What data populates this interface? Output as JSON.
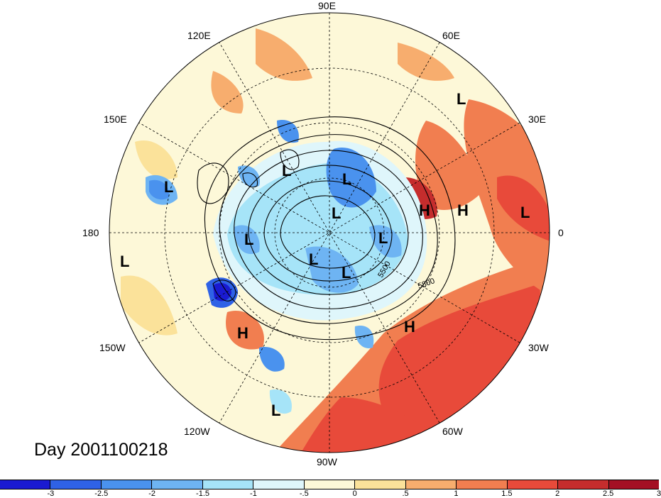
{
  "title": "Day 2001100218",
  "longitude_labels": {
    "lon_90e": "90E",
    "lon_60e": "60E",
    "lon_30e": "30E",
    "lon_0": "0",
    "lon_30w": "30W",
    "lon_60w": "60W",
    "lon_90w": "90W",
    "lon_120w": "120W",
    "lon_150w": "150W",
    "lon_180": "180",
    "lon_150e": "150E",
    "lon_120e": "120E"
  },
  "pressure_centers": {
    "low": "L",
    "high": "H"
  },
  "contour_labels": [
    "5500",
    "5800"
  ],
  "colorbar": {
    "colors": [
      "#1a1ad1",
      "#2f62e6",
      "#4a92ee",
      "#6eb4f3",
      "#a6e4f8",
      "#dff6fb",
      "#fdf8d8",
      "#fbe29a",
      "#f7ad6e",
      "#f17e50",
      "#e84a3a",
      "#c52d2d",
      "#a41024"
    ],
    "ticks": [
      "-3",
      "-2.5",
      "-2",
      "-1.5",
      "-1",
      "-.5",
      "0",
      ".5",
      "1",
      "1.5",
      "2",
      "2.5",
      "3"
    ]
  }
}
